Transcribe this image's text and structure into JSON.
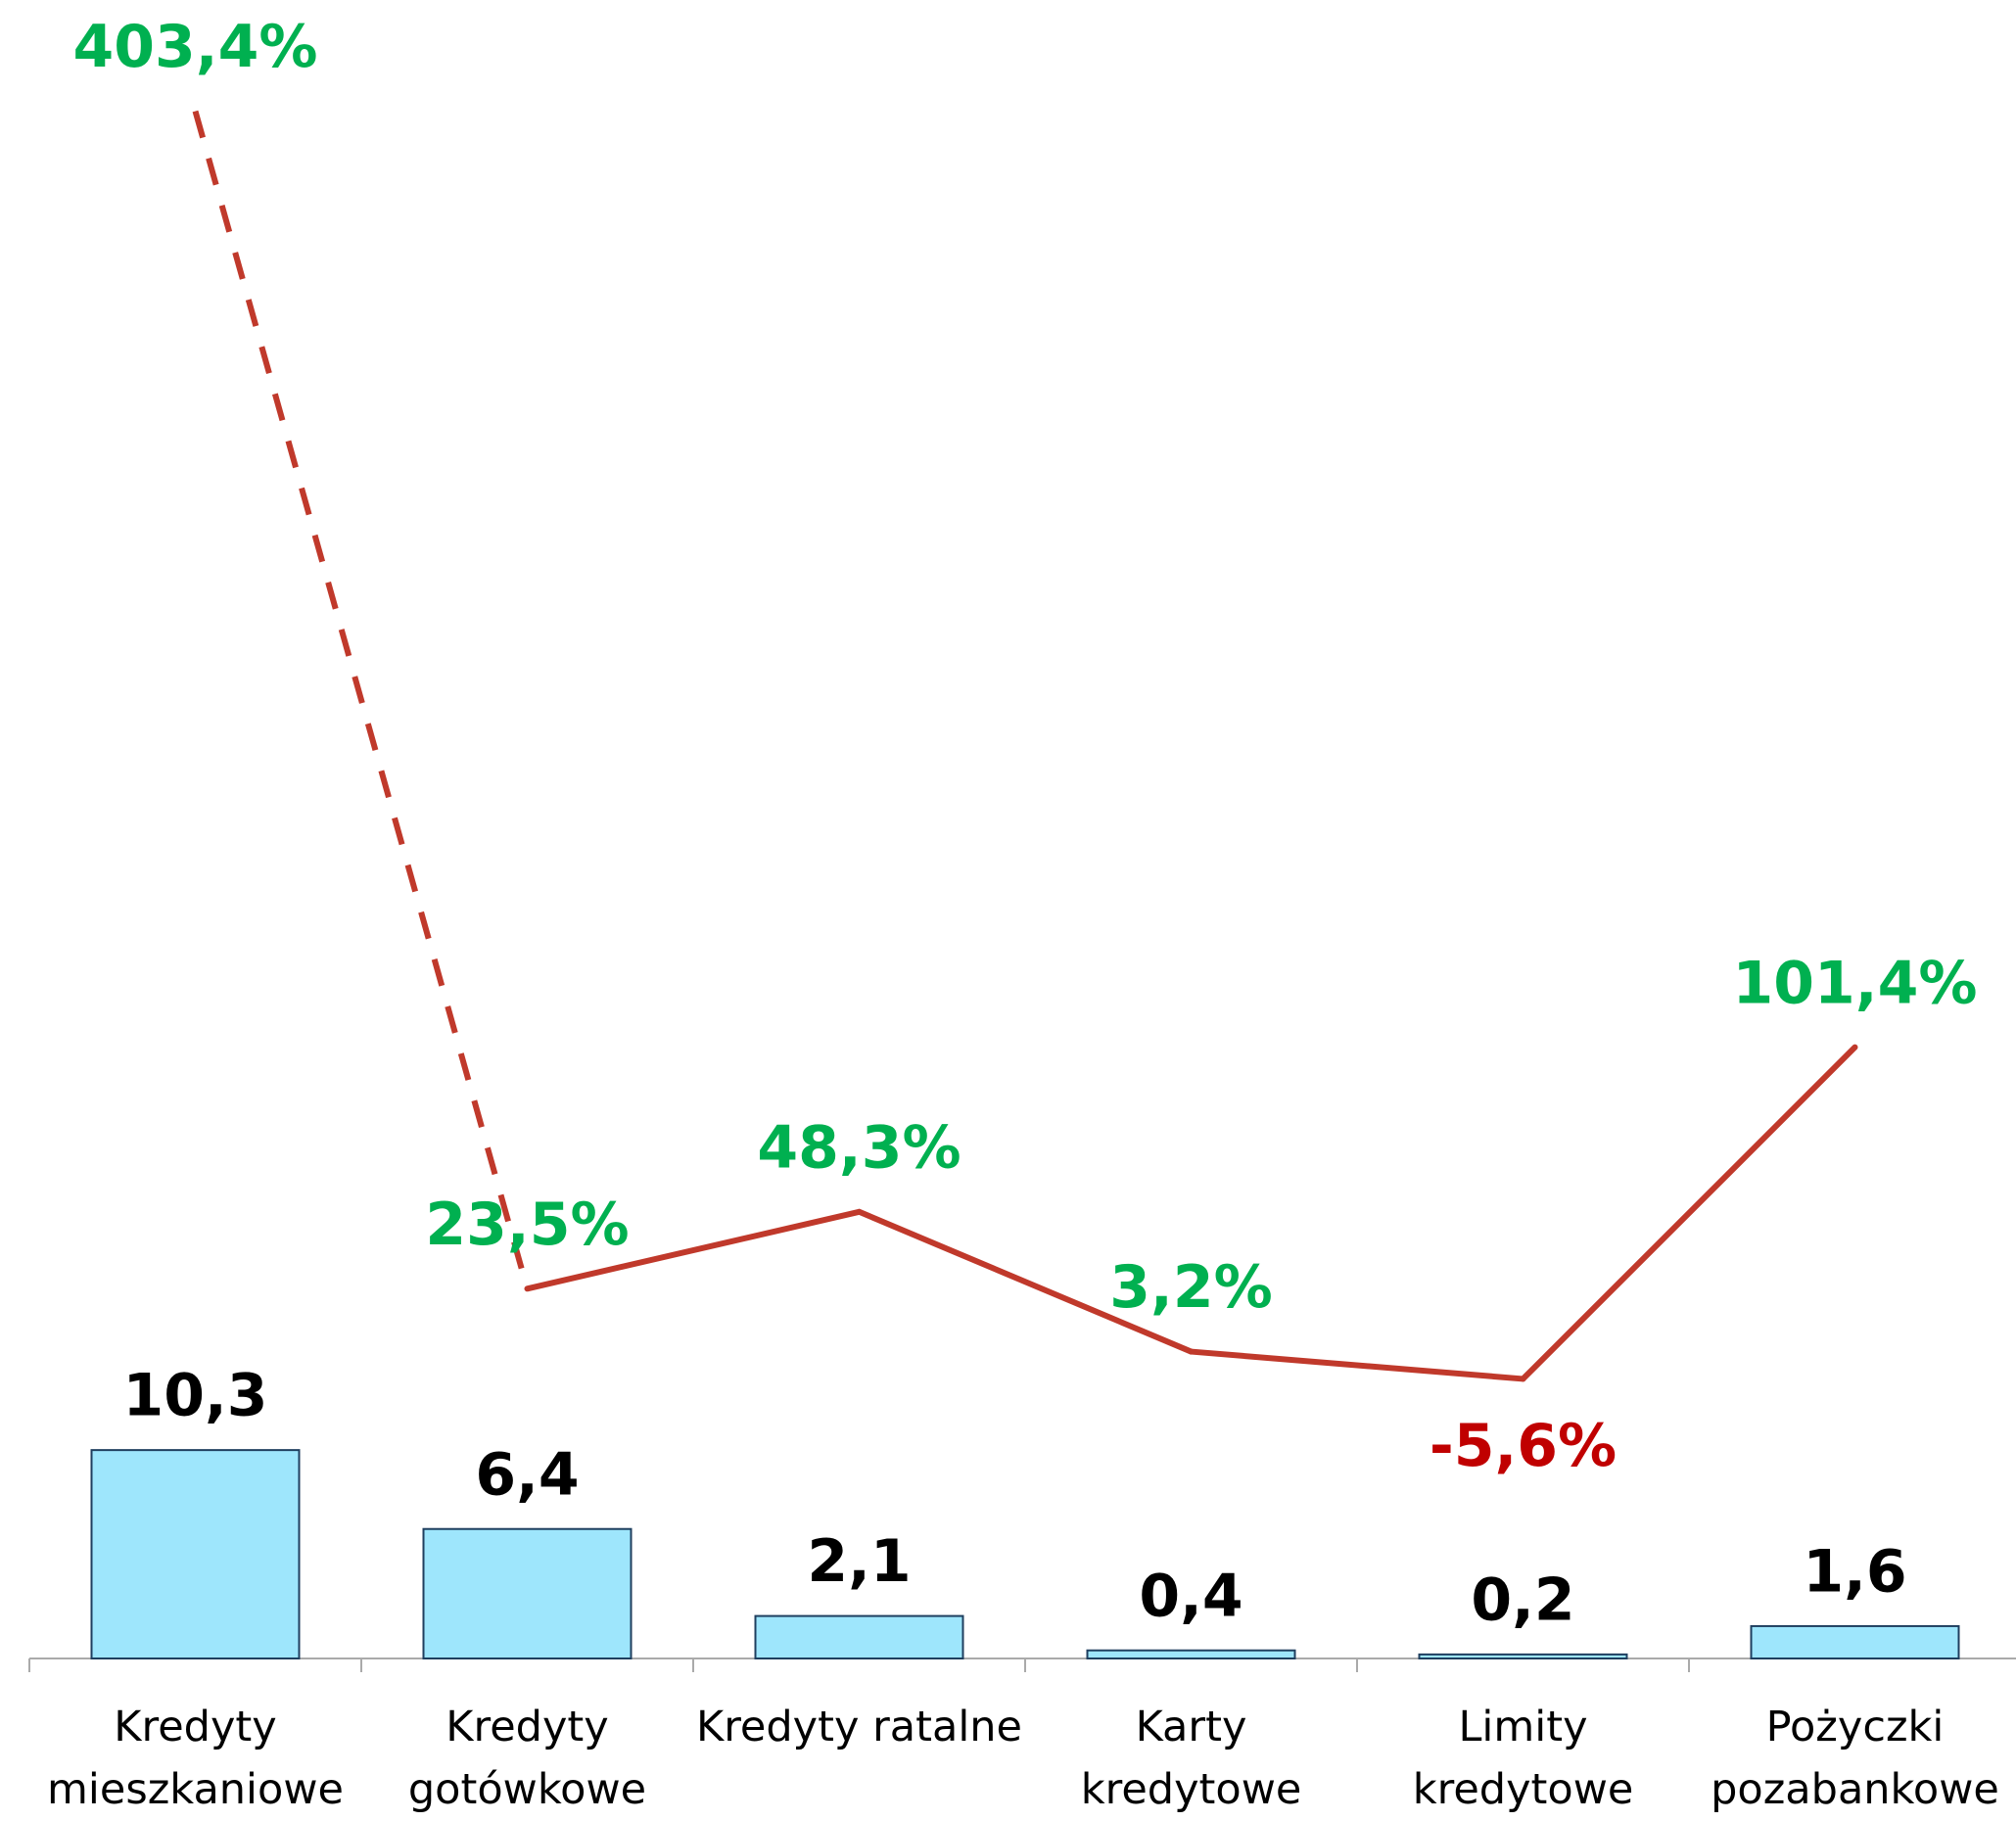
{
  "chart_data": {
    "type": "bar",
    "categories": [
      "Kredyty mieszkaniowe",
      "Kredyty gotówkowe",
      "Kredyty ratalne",
      "Karty kredytowe",
      "Limity kredytowe",
      "Pożyczki pozabankowe"
    ],
    "series": [
      {
        "type": "bar",
        "color": "#9ee6fc",
        "values": [
          10.3,
          6.4,
          2.1,
          0.4,
          0.2,
          1.6
        ],
        "value_labels": [
          "10,3",
          "6,4",
          "2,1",
          "0,4",
          "0,2",
          "1,6"
        ]
      },
      {
        "type": "line",
        "axis": "y2",
        "color": "#c0392b",
        "dashed_first_segment": true,
        "values": [
          403.4,
          23.5,
          48.3,
          3.2,
          -5.6,
          101.4
        ],
        "value_labels": [
          "403,4%",
          "23,5%",
          "48,3%",
          "3,2%",
          "-5,6%",
          "101,4%"
        ],
        "positive_label_color": "#00b050",
        "negative_label_color": "#c00000"
      }
    ],
    "ylim": [
      0,
      12
    ],
    "y2lim": [
      -50,
      420
    ]
  }
}
